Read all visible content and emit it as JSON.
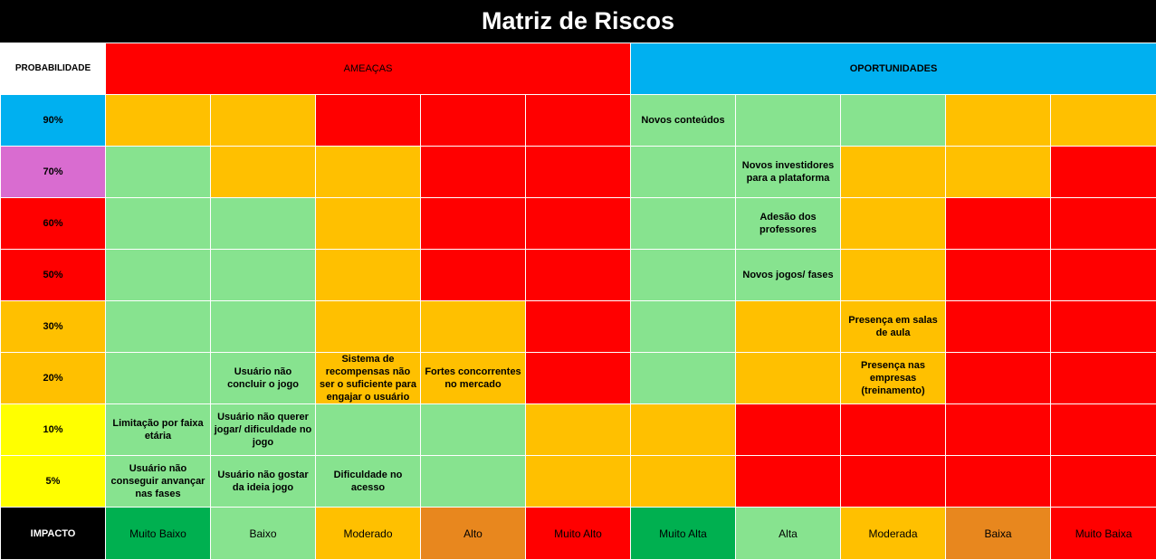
{
  "title": "Matriz de Riscos",
  "header": {
    "probabilidade": "PROBABILIDADE",
    "ameacas": "AMEAÇAS",
    "oportunidades": "OPORTUNIDADES"
  },
  "colors": {
    "green": "#87e38f",
    "yellow": "#ffc000",
    "red": "#ff0000",
    "orange": "#e8871e",
    "dark_green": "#00b050",
    "blue": "#00b0f0",
    "purple": "#d96cd0",
    "bright_yellow": "#ffff00",
    "black": "#000000"
  },
  "rows": [
    {
      "prob": "90%",
      "prob_color": "#00b0f0",
      "cells": [
        [
          "Y",
          ""
        ],
        [
          "Y",
          ""
        ],
        [
          "R",
          ""
        ],
        [
          "R",
          ""
        ],
        [
          "R",
          ""
        ],
        [
          "G",
          "Novos conteúdos"
        ],
        [
          "G",
          ""
        ],
        [
          "G",
          ""
        ],
        [
          "Y",
          ""
        ],
        [
          "Y",
          ""
        ]
      ]
    },
    {
      "prob": "70%",
      "prob_color": "#d96cd0",
      "cells": [
        [
          "G",
          ""
        ],
        [
          "Y",
          ""
        ],
        [
          "Y",
          ""
        ],
        [
          "R",
          ""
        ],
        [
          "R",
          ""
        ],
        [
          "G",
          ""
        ],
        [
          "G",
          "Novos investidores para a plataforma"
        ],
        [
          "Y",
          ""
        ],
        [
          "Y",
          ""
        ],
        [
          "R",
          ""
        ]
      ]
    },
    {
      "prob": "60%",
      "prob_color": "#ff0000",
      "cells": [
        [
          "G",
          ""
        ],
        [
          "G",
          ""
        ],
        [
          "Y",
          ""
        ],
        [
          "R",
          ""
        ],
        [
          "R",
          ""
        ],
        [
          "G",
          ""
        ],
        [
          "G",
          "Adesão dos professores"
        ],
        [
          "Y",
          ""
        ],
        [
          "R",
          ""
        ],
        [
          "R",
          ""
        ]
      ]
    },
    {
      "prob": "50%",
      "prob_color": "#ff0000",
      "cells": [
        [
          "G",
          ""
        ],
        [
          "G",
          ""
        ],
        [
          "Y",
          ""
        ],
        [
          "R",
          ""
        ],
        [
          "R",
          ""
        ],
        [
          "G",
          ""
        ],
        [
          "G",
          "Novos jogos/ fases"
        ],
        [
          "Y",
          ""
        ],
        [
          "R",
          ""
        ],
        [
          "R",
          ""
        ]
      ]
    },
    {
      "prob": "30%",
      "prob_color": "#ffc000",
      "cells": [
        [
          "G",
          ""
        ],
        [
          "G",
          ""
        ],
        [
          "Y",
          ""
        ],
        [
          "Y",
          ""
        ],
        [
          "R",
          ""
        ],
        [
          "G",
          ""
        ],
        [
          "Y",
          ""
        ],
        [
          "Y",
          "Presença em salas de aula"
        ],
        [
          "R",
          ""
        ],
        [
          "R",
          ""
        ]
      ]
    },
    {
      "prob": "20%",
      "prob_color": "#ffc000",
      "cells": [
        [
          "G",
          ""
        ],
        [
          "G",
          "Usuário não concluir o jogo"
        ],
        [
          "Y",
          "Sistema de recompensas não ser o suficiente para engajar o usuário"
        ],
        [
          "Y",
          "Fortes concorrentes no mercado"
        ],
        [
          "R",
          ""
        ],
        [
          "G",
          ""
        ],
        [
          "Y",
          ""
        ],
        [
          "Y",
          "Presença nas empresas (treinamento)"
        ],
        [
          "R",
          ""
        ],
        [
          "R",
          ""
        ]
      ]
    },
    {
      "prob": "10%",
      "prob_color": "#ffff00",
      "cells": [
        [
          "G",
          "Limitação por faixa etária"
        ],
        [
          "G",
          "Usuário não querer jogar/ dificuldade no jogo"
        ],
        [
          "G",
          ""
        ],
        [
          "G",
          ""
        ],
        [
          "Y",
          ""
        ],
        [
          "Y",
          ""
        ],
        [
          "R",
          ""
        ],
        [
          "R",
          ""
        ],
        [
          "R",
          ""
        ],
        [
          "R",
          ""
        ]
      ]
    },
    {
      "prob": "5%",
      "prob_color": "#ffff00",
      "cells": [
        [
          "G",
          "Usuário não conseguir anvançar nas fases"
        ],
        [
          "G",
          "Usuário não gostar da ideia jogo"
        ],
        [
          "G",
          "Dificuldade no acesso"
        ],
        [
          "G",
          ""
        ],
        [
          "Y",
          ""
        ],
        [
          "Y",
          ""
        ],
        [
          "R",
          ""
        ],
        [
          "R",
          ""
        ],
        [
          "R",
          ""
        ],
        [
          "R",
          ""
        ]
      ]
    }
  ],
  "impact": {
    "label": "IMPACTO",
    "levels": [
      {
        "name": "Muito Baixo",
        "color": "D"
      },
      {
        "name": "Baixo",
        "color": "G"
      },
      {
        "name": "Moderado",
        "color": "Y"
      },
      {
        "name": "Alto",
        "color": "O"
      },
      {
        "name": "Muito Alto",
        "color": "R"
      },
      {
        "name": "Muito Alta",
        "color": "D"
      },
      {
        "name": "Alta",
        "color": "G"
      },
      {
        "name": "Moderada",
        "color": "Y"
      },
      {
        "name": "Baixa",
        "color": "O"
      },
      {
        "name": "Muito Baixa",
        "color": "R"
      }
    ]
  }
}
